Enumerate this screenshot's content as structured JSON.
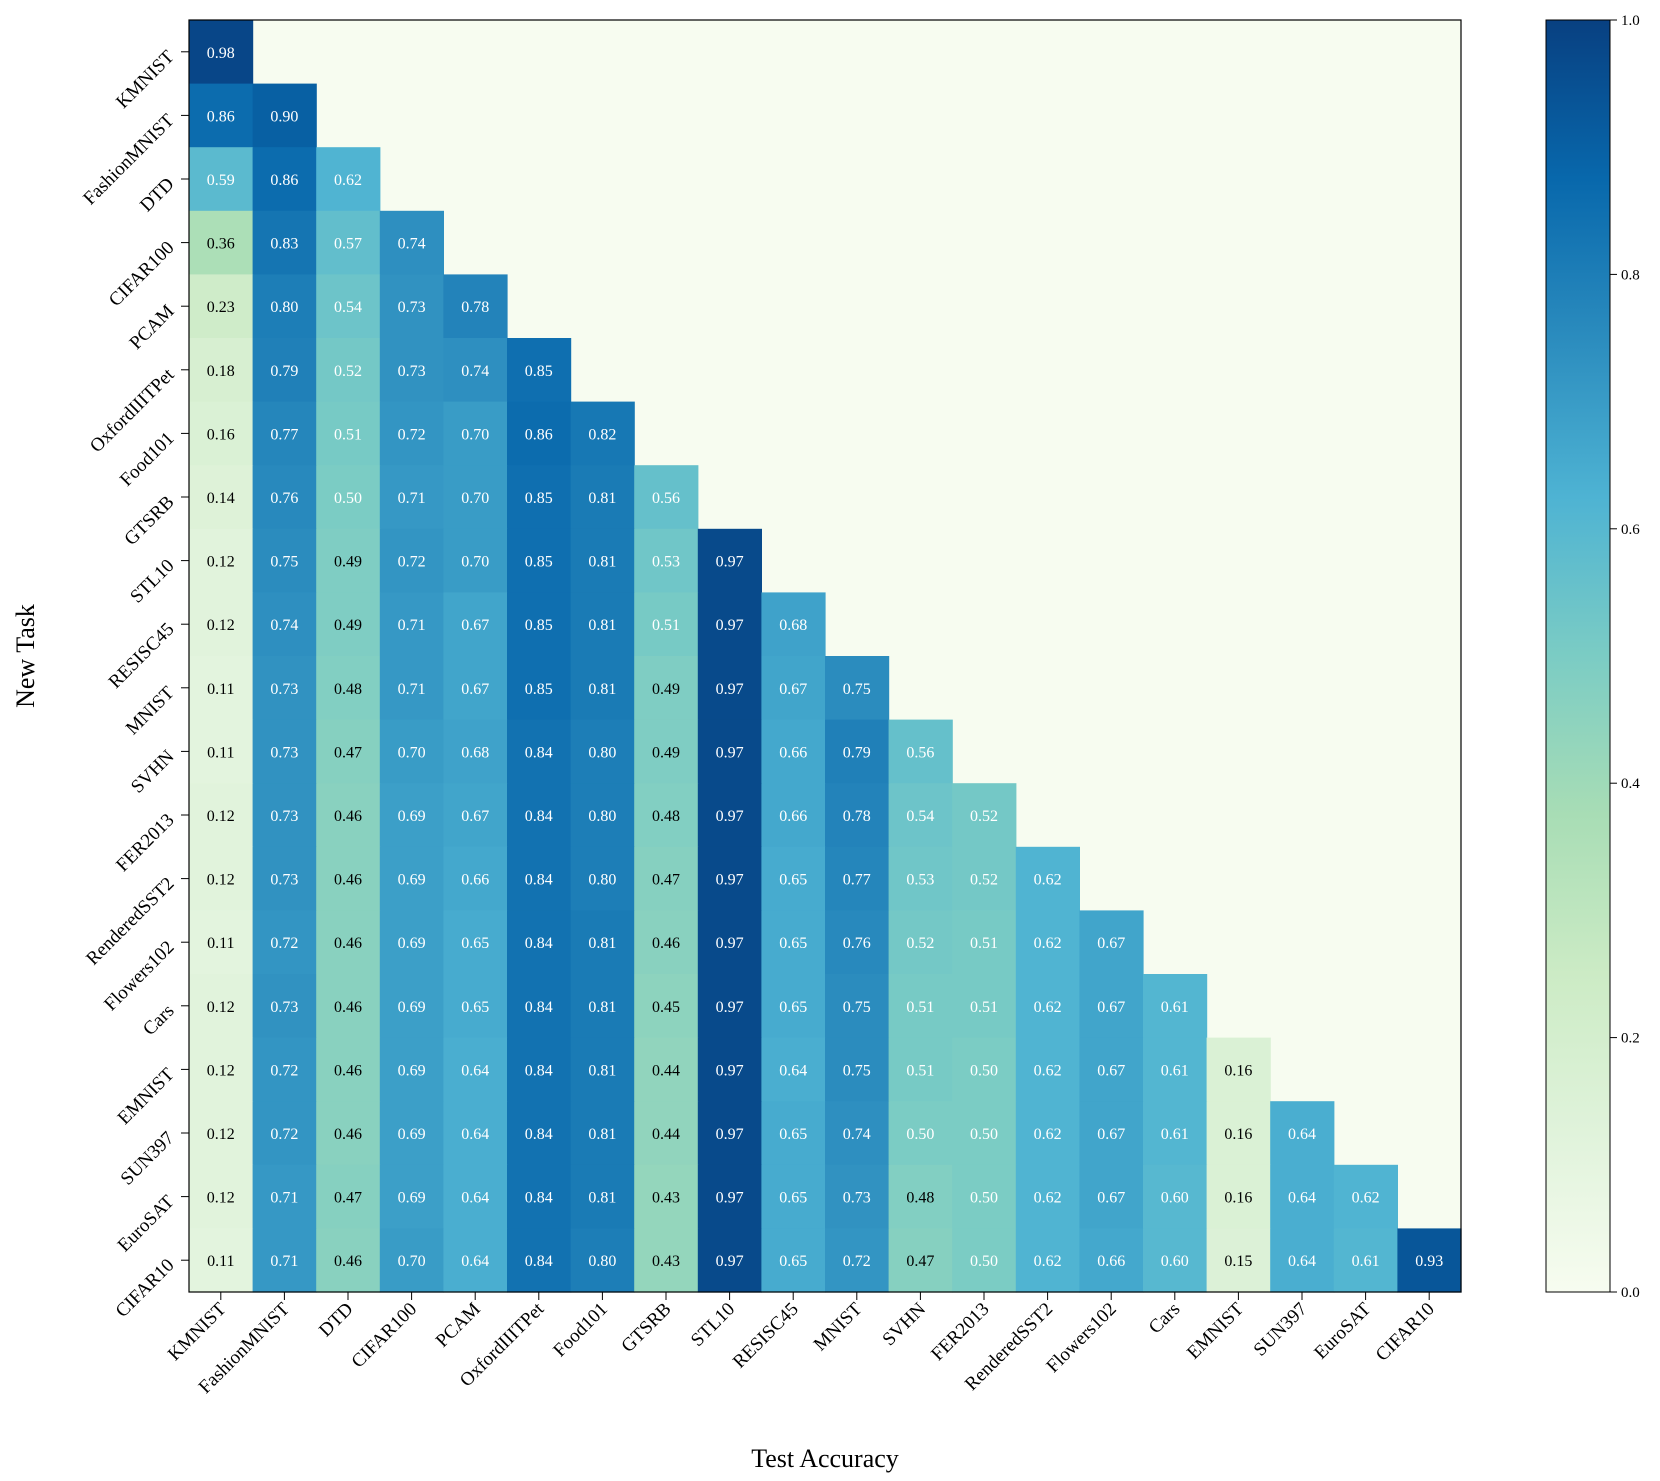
{
  "chart_data": {
    "type": "heatmap",
    "xlabel": "Test Accuracy",
    "ylabel": "New Task",
    "columns": [
      "KMNIST",
      "FashionMNIST",
      "DTD",
      "CIFAR100",
      "PCAM",
      "OxfordIIITPet",
      "Food101",
      "GTSRB",
      "STL10",
      "RESISC45",
      "MNIST",
      "SVHN",
      "FER2013",
      "RenderedSST2",
      "Flowers102",
      "Cars",
      "EMNIST",
      "SUN397",
      "EuroSAT",
      "CIFAR10"
    ],
    "rows": [
      "KMNIST",
      "FashionMNIST",
      "DTD",
      "CIFAR100",
      "PCAM",
      "OxfordIIITPet",
      "Food101",
      "GTSRB",
      "STL10",
      "RESISC45",
      "MNIST",
      "SVHN",
      "FER2013",
      "RenderedSST2",
      "Flowers102",
      "Cars",
      "EMNIST",
      "SUN397",
      "EuroSAT",
      "CIFAR10"
    ],
    "values": [
      [
        0.98
      ],
      [
        0.86,
        0.9
      ],
      [
        0.59,
        0.86,
        0.62
      ],
      [
        0.36,
        0.83,
        0.57,
        0.74
      ],
      [
        0.23,
        0.8,
        0.54,
        0.73,
        0.78
      ],
      [
        0.18,
        0.79,
        0.52,
        0.73,
        0.74,
        0.85
      ],
      [
        0.16,
        0.77,
        0.51,
        0.72,
        0.7,
        0.86,
        0.82
      ],
      [
        0.14,
        0.76,
        0.5,
        0.71,
        0.7,
        0.85,
        0.81,
        0.56
      ],
      [
        0.12,
        0.75,
        0.49,
        0.72,
        0.7,
        0.85,
        0.81,
        0.53,
        0.97
      ],
      [
        0.12,
        0.74,
        0.49,
        0.71,
        0.67,
        0.85,
        0.81,
        0.51,
        0.97,
        0.68
      ],
      [
        0.11,
        0.73,
        0.48,
        0.71,
        0.67,
        0.85,
        0.81,
        0.49,
        0.97,
        0.67,
        0.75
      ],
      [
        0.11,
        0.73,
        0.47,
        0.7,
        0.68,
        0.84,
        0.8,
        0.49,
        0.97,
        0.66,
        0.79,
        0.56
      ],
      [
        0.12,
        0.73,
        0.46,
        0.69,
        0.67,
        0.84,
        0.8,
        0.48,
        0.97,
        0.66,
        0.78,
        0.54,
        0.52
      ],
      [
        0.12,
        0.73,
        0.46,
        0.69,
        0.66,
        0.84,
        0.8,
        0.47,
        0.97,
        0.65,
        0.77,
        0.53,
        0.52,
        0.62
      ],
      [
        0.11,
        0.72,
        0.46,
        0.69,
        0.65,
        0.84,
        0.81,
        0.46,
        0.97,
        0.65,
        0.76,
        0.52,
        0.51,
        0.62,
        0.67
      ],
      [
        0.12,
        0.73,
        0.46,
        0.69,
        0.65,
        0.84,
        0.81,
        0.45,
        0.97,
        0.65,
        0.75,
        0.51,
        0.51,
        0.62,
        0.67,
        0.61
      ],
      [
        0.12,
        0.72,
        0.46,
        0.69,
        0.64,
        0.84,
        0.81,
        0.44,
        0.97,
        0.64,
        0.75,
        0.51,
        0.5,
        0.62,
        0.67,
        0.61,
        0.16
      ],
      [
        0.12,
        0.72,
        0.46,
        0.69,
        0.64,
        0.84,
        0.81,
        0.44,
        0.97,
        0.65,
        0.74,
        0.5,
        0.5,
        0.62,
        0.67,
        0.61,
        0.16,
        0.64
      ],
      [
        0.12,
        0.71,
        0.47,
        0.69,
        0.64,
        0.84,
        0.81,
        0.43,
        0.97,
        0.65,
        0.73,
        0.48,
        0.5,
        0.62,
        0.67,
        0.6,
        0.16,
        0.64,
        0.62
      ],
      [
        0.11,
        0.71,
        0.46,
        0.7,
        0.64,
        0.84,
        0.8,
        0.43,
        0.97,
        0.65,
        0.72,
        0.47,
        0.5,
        0.62,
        0.66,
        0.6,
        0.15,
        0.64,
        0.61,
        0.93
      ]
    ],
    "value_range": [
      0.0,
      1.0
    ],
    "colorbar_ticks": [
      "0.0",
      "0.2",
      "0.4",
      "0.6",
      "0.8",
      "1.0"
    ],
    "colormap": "GnBu",
    "empty_cell_color": "#f7fcf0"
  }
}
